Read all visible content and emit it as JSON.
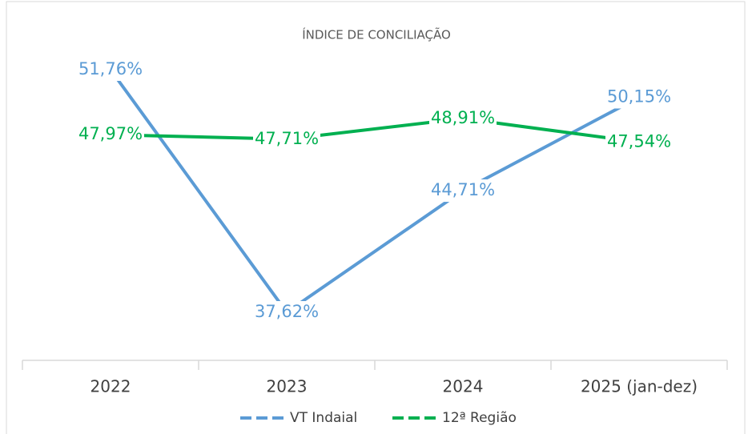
{
  "chart_data": {
    "type": "line",
    "title": "ÍNDICE DE CONCILIAÇÃO",
    "categories": [
      "2022",
      "2023",
      "2024",
      "2025 (jan-dez)"
    ],
    "series": [
      {
        "name": "VT Indaial",
        "color": "#5b9bd5",
        "values": [
          51.76,
          37.62,
          44.71,
          50.15
        ],
        "value_labels": [
          "51,76%",
          "37,62%",
          "44,71%",
          "50,15%"
        ]
      },
      {
        "name": "12ª Região",
        "color": "#00b050",
        "values": [
          47.97,
          47.71,
          48.91,
          47.54
        ],
        "value_labels": [
          "47,97%",
          "47,71%",
          "48,91%",
          "47,54%"
        ]
      }
    ]
  }
}
